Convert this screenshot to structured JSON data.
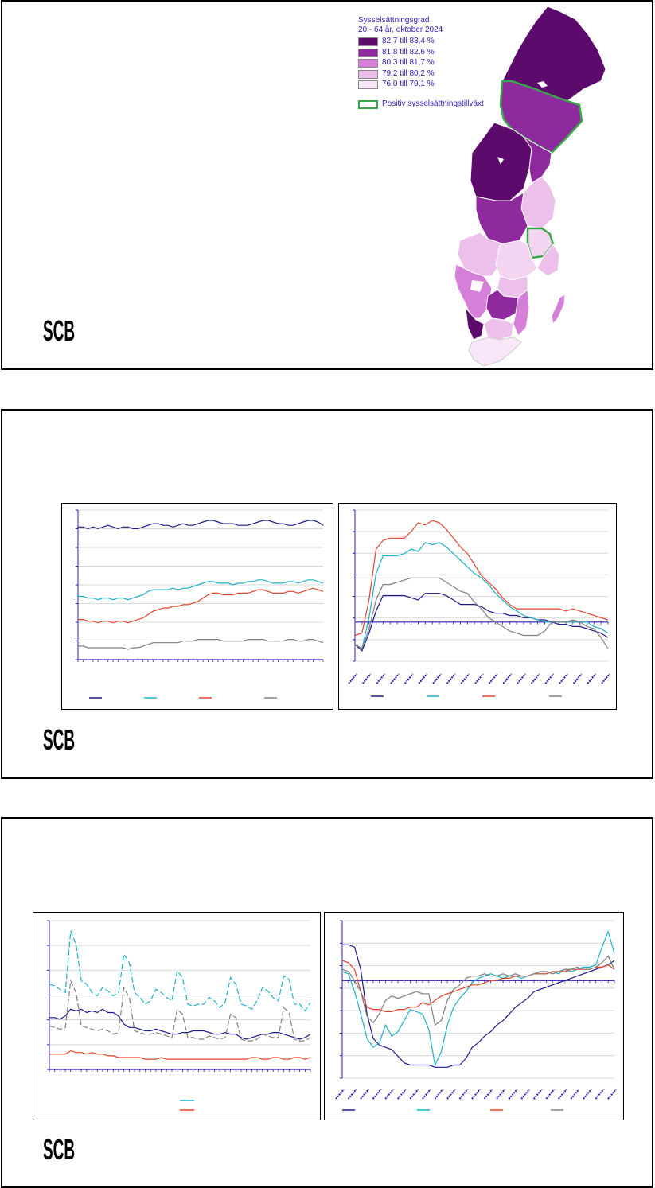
{
  "slide1": {
    "legend": {
      "title_line1": "Sysselsättningsgrad",
      "title_line2": "20 - 64 år, oktober 2024",
      "items": [
        {
          "label": "82,7 till 83,4 %",
          "color": "#5c0a6b"
        },
        {
          "label": "81,8 till 82,6 %",
          "color": "#8e2a9e"
        },
        {
          "label": "80,3 till 81,7 %",
          "color": "#d57fd9"
        },
        {
          "label": "79,2 till 80,2 %",
          "color": "#ecc0ea"
        },
        {
          "label": "76,0 till 79,1 %",
          "color": "#f9e6f8"
        }
      ],
      "growth_label": "Positiv sysselsättningstillväxt",
      "growth_color": "#3aa64a"
    },
    "logo": "SCB"
  },
  "slide2": {
    "logo": "SCB",
    "left_chart": {
      "type": "line",
      "series": [
        {
          "color": "#1a1a8c",
          "values": [
            78,
            78,
            77,
            78,
            77,
            78,
            79,
            78,
            77,
            78,
            78,
            77,
            77,
            78,
            79,
            80,
            80,
            79,
            79,
            78,
            79,
            80,
            79,
            79,
            80,
            81,
            82,
            82,
            81,
            80,
            80,
            80,
            79,
            79,
            79,
            80,
            81,
            82,
            82,
            81,
            80,
            80,
            79,
            79,
            80,
            81,
            82,
            82,
            81,
            79
          ]
        },
        {
          "color": "#1fb0c8",
          "values": [
            36,
            36,
            35,
            35,
            34,
            35,
            35,
            34,
            35,
            35,
            34,
            35,
            36,
            37,
            39,
            40,
            40,
            40,
            40,
            41,
            40,
            41,
            41,
            42,
            43,
            44,
            45,
            45,
            44,
            44,
            44,
            43,
            44,
            44,
            45,
            45,
            46,
            46,
            45,
            44,
            44,
            44,
            45,
            45,
            44,
            45,
            46,
            46,
            45,
            44
          ]
        },
        {
          "color": "#e0442c",
          "values": [
            22,
            22,
            21,
            21,
            20,
            21,
            21,
            20,
            21,
            21,
            20,
            21,
            22,
            23,
            25,
            27,
            28,
            29,
            29,
            30,
            30,
            31,
            31,
            32,
            33,
            35,
            37,
            38,
            38,
            37,
            37,
            37,
            38,
            38,
            38,
            39,
            40,
            40,
            39,
            38,
            38,
            38,
            39,
            39,
            38,
            39,
            40,
            41,
            40,
            39
          ]
        },
        {
          "color": "#808080",
          "values": [
            6,
            6,
            5,
            5,
            5,
            5,
            5,
            5,
            5,
            5,
            4,
            5,
            5,
            6,
            7,
            8,
            8,
            8,
            8,
            8,
            8,
            9,
            9,
            9,
            10,
            10,
            10,
            10,
            10,
            9,
            9,
            9,
            9,
            9,
            10,
            10,
            10,
            10,
            9,
            9,
            9,
            9,
            10,
            10,
            9,
            9,
            10,
            10,
            9,
            8
          ]
        }
      ]
    },
    "right_chart": {
      "type": "line",
      "series": [
        {
          "color": "#1a1a8c",
          "values": [
            -1,
            -1.3,
            -0.5,
            0.5,
            1.2,
            1.2,
            1.2,
            1.2,
            1.1,
            1.0,
            1.3,
            1.3,
            1.3,
            1.2,
            1.0,
            0.8,
            0.8,
            0.8,
            0.7,
            0.5,
            0.4,
            0.4,
            0.3,
            0.3,
            0.2,
            0.2,
            0.1,
            0.1,
            0,
            -0.1,
            -0.1,
            -0.2,
            -0.2,
            -0.3,
            -0.4,
            -0.5,
            -0.7
          ]
        },
        {
          "color": "#1fb0c8",
          "values": [
            -1,
            -1.2,
            0.2,
            2.2,
            3.0,
            3.0,
            3.0,
            3.1,
            3.3,
            3.2,
            3.6,
            3.5,
            3.6,
            3.4,
            3.1,
            2.8,
            2.5,
            2.2,
            2.0,
            1.7,
            1.3,
            1.0,
            0.7,
            0.5,
            0.3,
            0.2,
            0.1,
            0,
            0,
            0,
            0,
            0,
            0,
            0,
            -0.2,
            -0.3,
            -0.5
          ]
        },
        {
          "color": "#e0442c",
          "values": [
            -0.6,
            -0.5,
            1.0,
            3.3,
            3.7,
            3.8,
            3.8,
            3.8,
            4.1,
            4.5,
            4.4,
            4.6,
            4.5,
            4.2,
            3.8,
            3.4,
            3.1,
            2.6,
            2.1,
            1.8,
            1.5,
            1.1,
            0.8,
            0.6,
            0.6,
            0.6,
            0.6,
            0.6,
            0.6,
            0.6,
            0.5,
            0.6,
            0.5,
            0.4,
            0.3,
            0.2,
            0.1
          ]
        },
        {
          "color": "#808080",
          "values": [
            -1,
            -1.2,
            -0.3,
            1.0,
            1.7,
            1.7,
            1.8,
            1.9,
            2.0,
            2.0,
            2.0,
            2.0,
            2.0,
            1.8,
            1.6,
            1.4,
            1.3,
            0.9,
            0.6,
            0.2,
            0,
            -0.2,
            -0.4,
            -0.5,
            -0.6,
            -0.6,
            -0.6,
            -0.4,
            0,
            0,
            0,
            0.1,
            0,
            -0.2,
            -0.3,
            -0.7,
            -1.2
          ]
        }
      ]
    }
  },
  "slide3": {
    "logo": "SCB",
    "left_chart": {
      "type": "line",
      "series": [
        {
          "color": "#1fb0c8",
          "values": [
            50,
            49,
            47,
            45,
            82,
            74,
            52,
            50,
            45,
            43,
            48,
            46,
            43,
            45,
            68,
            63,
            45,
            42,
            38,
            40,
            47,
            45,
            42,
            40,
            58,
            54,
            38,
            37,
            38,
            38,
            42,
            40,
            36,
            39,
            54,
            50,
            38,
            37,
            35,
            40,
            48,
            46,
            42,
            40,
            55,
            53,
            38,
            38,
            34,
            39
          ]
        },
        {
          "color": "#1a1a8c",
          "values": [
            30,
            30,
            29,
            31,
            35,
            34,
            35,
            33,
            34,
            33,
            35,
            33,
            33,
            31,
            26,
            24,
            24,
            23,
            22,
            22,
            23,
            22,
            21,
            20,
            20,
            21,
            21,
            22,
            22,
            22,
            21,
            20,
            20,
            21,
            20,
            20,
            18,
            17,
            18,
            19,
            20,
            20,
            21,
            21,
            20,
            19,
            18,
            17,
            18,
            20
          ]
        },
        {
          "color": "#808080",
          "values": [
            25,
            24,
            23,
            24,
            52,
            45,
            25,
            24,
            23,
            22,
            23,
            22,
            20,
            21,
            48,
            42,
            22,
            21,
            20,
            20,
            21,
            20,
            19,
            18,
            35,
            32,
            18,
            18,
            17,
            17,
            19,
            18,
            17,
            18,
            32,
            30,
            17,
            16,
            16,
            17,
            20,
            19,
            18,
            18,
            36,
            33,
            17,
            16,
            16,
            18
          ]
        },
        {
          "color": "#e0442c",
          "values": [
            8,
            8,
            8,
            8,
            10,
            9,
            9,
            8,
            9,
            8,
            8,
            7,
            7,
            6,
            6,
            6,
            6,
            6,
            5,
            5,
            5,
            6,
            5,
            5,
            5,
            5,
            5,
            5,
            5,
            5,
            5,
            5,
            5,
            5,
            5,
            5,
            5,
            5,
            6,
            6,
            5,
            5,
            6,
            6,
            5,
            5,
            6,
            6,
            5,
            6
          ]
        }
      ]
    },
    "right_chart": {
      "type": "line",
      "series": [
        {
          "color": "#1a1a8c",
          "values": [
            1.6,
            1.6,
            1.5,
            0.5,
            -1.5,
            -2.6,
            -2.9,
            -3.0,
            -3.1,
            -3.4,
            -3.7,
            -3.8,
            -3.8,
            -3.8,
            -3.8,
            -3.9,
            -3.9,
            -3.9,
            -3.8,
            -3.8,
            -3.5,
            -3.0,
            -2.8,
            -2.5,
            -2.3,
            -2.0,
            -1.8,
            -1.5,
            -1.2,
            -1.0,
            -0.8,
            -0.5,
            -0.4,
            -0.3,
            -0.2,
            -0.1,
            0,
            0.1,
            0.2,
            0.3,
            0.4,
            0.5,
            0.6,
            0.7,
            0.9
          ]
        },
        {
          "color": "#1fb0c8",
          "values": [
            0.4,
            0.3,
            -0.5,
            -1.5,
            -2.6,
            -3.0,
            -2.8,
            -2.0,
            -2.5,
            -2.3,
            -1.8,
            -1.3,
            -1.4,
            -1.5,
            -2.2,
            -3.8,
            -3.2,
            -2.0,
            -1.2,
            -0.8,
            -0.5,
            -0.1,
            0.1,
            0.2,
            0.3,
            0.2,
            0.1,
            0.2,
            0.2,
            0.1,
            0.2,
            0.3,
            0.3,
            0.3,
            0.4,
            0.3,
            0.5,
            0.4,
            0.5,
            0.6,
            0.6,
            0.7,
            1.5,
            2.2,
            1.2
          ]
        },
        {
          "color": "#e0442c",
          "values": [
            0.9,
            0.8,
            0.5,
            -0.5,
            -1.2,
            -1.3,
            -1.3,
            -1.4,
            -1.4,
            -1.3,
            -1.3,
            -1.2,
            -1.2,
            -1.0,
            -1.1,
            -0.9,
            -0.7,
            -0.6,
            -0.5,
            -0.4,
            -0.3,
            -0.2,
            -0.2,
            -0.1,
            0,
            0,
            0.1,
            0.1,
            0.2,
            0.2,
            0.2,
            0.3,
            0.3,
            0.3,
            0.4,
            0.4,
            0.4,
            0.5,
            0.5,
            0.5,
            0.5,
            0.6,
            0.6,
            0.7,
            0.5
          ]
        },
        {
          "color": "#808080",
          "values": [
            0.5,
            0.4,
            0,
            -0.5,
            -1.6,
            -1.9,
            -1.5,
            -0.9,
            -0.7,
            -0.8,
            -0.7,
            -0.6,
            -0.5,
            -0.6,
            -0.6,
            -2.0,
            -1.8,
            -0.9,
            -0.4,
            -0.2,
            0.1,
            0.2,
            0.2,
            0.3,
            0.2,
            0.2,
            0.3,
            0.2,
            0.3,
            0.2,
            0.2,
            0.3,
            0.4,
            0.4,
            0.3,
            0.4,
            0.5,
            0.5,
            0.6,
            0.5,
            0.5,
            0.6,
            0.8,
            1.1,
            0.5
          ]
        }
      ]
    }
  }
}
